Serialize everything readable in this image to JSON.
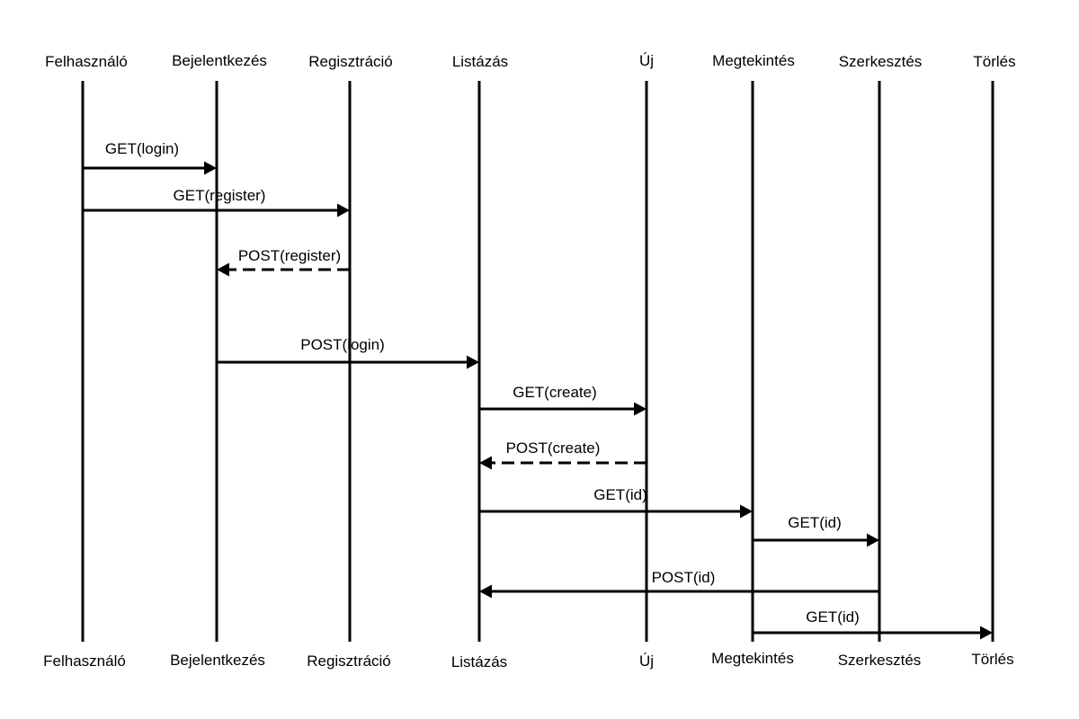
{
  "participants": [
    {
      "name": "Felhasználó"
    },
    {
      "name": "Bejelentkezés"
    },
    {
      "name": "Regisztráció"
    },
    {
      "name": "Listázás"
    },
    {
      "name": "Új"
    },
    {
      "name": "Megtekintés"
    },
    {
      "name": "Szerkesztés"
    },
    {
      "name": "Törlés"
    }
  ],
  "messages": [
    {
      "label": "GET(login)",
      "from": 0,
      "to": 1,
      "style": "solid"
    },
    {
      "label": "GET(register)",
      "from": 0,
      "to": 2,
      "style": "solid"
    },
    {
      "label": "POST(register)",
      "from": 2,
      "to": 1,
      "style": "dashed"
    },
    {
      "label": "POST(login)",
      "from": 1,
      "to": 3,
      "style": "solid"
    },
    {
      "label": "GET(create)",
      "from": 3,
      "to": 4,
      "style": "solid"
    },
    {
      "label": "POST(create)",
      "from": 4,
      "to": 3,
      "style": "dashed"
    },
    {
      "label": "GET(id)",
      "from": 3,
      "to": 5,
      "style": "solid"
    },
    {
      "label": "GET(id)",
      "from": 5,
      "to": 6,
      "style": "solid"
    },
    {
      "label": "POST(id)",
      "from": 6,
      "to": 3,
      "style": "solid"
    },
    {
      "label": "GET(id)",
      "from": 5,
      "to": 7,
      "style": "solid"
    }
  ],
  "colors": {
    "line": "#000000",
    "background": "#ffffff"
  }
}
